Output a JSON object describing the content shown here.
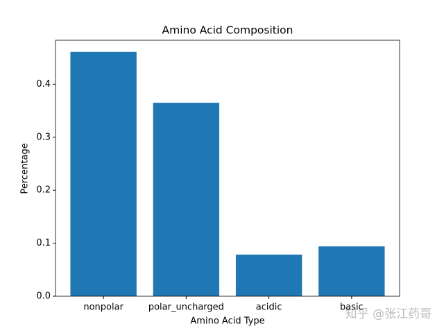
{
  "chart_data": {
    "type": "bar",
    "title": "Amino Acid Composition",
    "x_label": "Amino Acid Type",
    "y_label": "Percentage",
    "categories": [
      "nonpolar",
      "polar_uncharged",
      "acidic",
      "basic"
    ],
    "values": [
      0.461,
      0.365,
      0.0785,
      0.094
    ],
    "color": "#1f77b4",
    "ylim": [
      0,
      0.483
    ],
    "yticks": [
      {
        "value": 0,
        "label": "0.0"
      },
      0.1,
      0.2,
      0.3,
      0.4
    ],
    "grid": false
  },
  "watermark": "知乎 @张江药哥"
}
